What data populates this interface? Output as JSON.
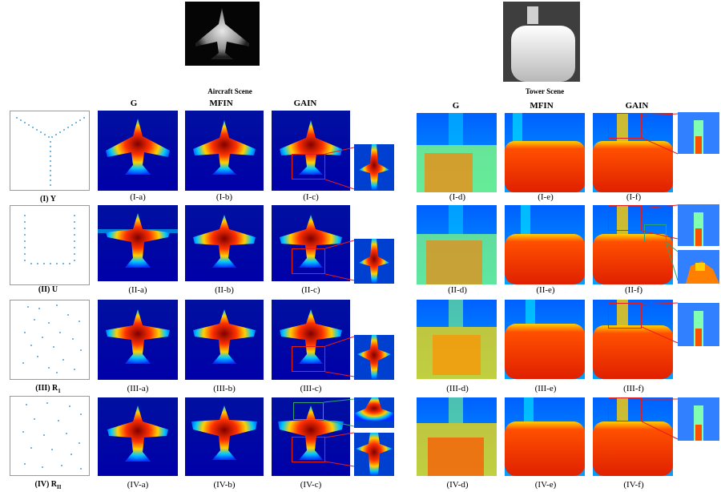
{
  "scenes": {
    "aircraft": "Aircraft Scene",
    "tower": "Tower Scene"
  },
  "columns": {
    "left": [
      "G",
      "MFIN",
      "GAIN"
    ],
    "right": [
      "G",
      "MFIN",
      "GAIN"
    ]
  },
  "rows": [
    {
      "label": "(I) Y",
      "captions": [
        "(I-a)",
        "(I-b)",
        "(I-c)",
        "(I-d)",
        "(I-e)",
        "(I-f)"
      ]
    },
    {
      "label": "(II) U",
      "captions": [
        "(II-a)",
        "(II-b)",
        "(II-c)",
        "(II-d)",
        "(II-e)",
        "(II-f)"
      ]
    },
    {
      "label": "(III) R",
      "label_sub": "1",
      "captions": [
        "(III-a)",
        "(III-b)",
        "(III-c)",
        "(III-d)",
        "(III-e)",
        "(III-f)"
      ]
    },
    {
      "label": "(IV) R",
      "label_sub": "II",
      "captions": [
        "(IV-a)",
        "(IV-b)",
        "(IV-c)",
        "(IV-d)",
        "(IV-e)",
        "(IV-f)"
      ]
    }
  ],
  "colors": {
    "colormap": [
      "#00007f",
      "#0030ff",
      "#00c8ff",
      "#7fff7f",
      "#ffd000",
      "#ff3000",
      "#7f0000"
    ],
    "zoom_box": "#e61c1c",
    "zoom_box_alt": "#2fa36b",
    "scatter_points": "#4aa3d6"
  }
}
